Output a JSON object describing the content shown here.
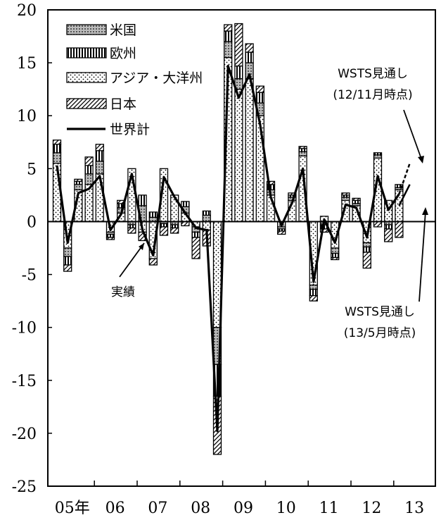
{
  "chart_data": {
    "type": "bar",
    "y_axis": {
      "min": -25,
      "max": 20,
      "step": 5,
      "ticks": [
        "20",
        "15",
        "10",
        "5",
        "0",
        "-5",
        "-10",
        "-15",
        "-20",
        "-25"
      ]
    },
    "x_tick_labels": [
      "05年",
      "06",
      "07",
      "08",
      "09",
      "10",
      "11",
      "12",
      "13"
    ],
    "legend": [
      {
        "key": "us",
        "label": "米国"
      },
      {
        "key": "eu",
        "label": "欧州"
      },
      {
        "key": "ap",
        "label": "アジア・大洋州"
      },
      {
        "key": "jp",
        "label": "日本"
      },
      {
        "key": "world",
        "label": "世界計"
      }
    ],
    "quarters": [
      "05Q1",
      "05Q2",
      "05Q3",
      "05Q4",
      "06Q1",
      "06Q2",
      "06Q3",
      "06Q4",
      "07Q1",
      "07Q2",
      "07Q3",
      "07Q4",
      "08Q1",
      "08Q2",
      "08Q3",
      "08Q4",
      "09Q1",
      "09Q2",
      "09Q3",
      "09Q4",
      "10Q1",
      "10Q2",
      "10Q3",
      "10Q4",
      "11Q1",
      "11Q2",
      "11Q3",
      "11Q4",
      "12Q1",
      "12Q2",
      "12Q3",
      "12Q4",
      "13Q1"
    ],
    "series": [
      {
        "key": "us",
        "name": "米国",
        "values": [
          1.0,
          -0.8,
          0.5,
          1.0,
          1.2,
          -0.2,
          0.5,
          -0.3,
          1.5,
          0.4,
          -0.2,
          -0.3,
          0.6,
          -0.5,
          0.6,
          -3.5,
          1.5,
          1.0,
          1.5,
          1.2,
          0.5,
          -0.2,
          0.3,
          0.4,
          -0.4,
          -0.3,
          -0.5,
          0.3,
          0.2,
          -0.4,
          0.3,
          -0.3,
          0.2
        ]
      },
      {
        "key": "eu",
        "name": "欧州",
        "values": [
          0.8,
          -0.8,
          0.3,
          0.8,
          1.0,
          -0.3,
          0.4,
          -0.3,
          1.0,
          0.5,
          -0.3,
          -0.3,
          0.5,
          -0.5,
          0.4,
          -3.0,
          1.0,
          1.2,
          1.0,
          1.0,
          0.5,
          -0.2,
          0.2,
          0.3,
          -0.6,
          -0.4,
          -0.4,
          0.2,
          0.3,
          -0.5,
          0.2,
          -0.4,
          0.3
        ]
      },
      {
        "key": "ap",
        "name": "アジア・大洋州",
        "values": [
          5.5,
          -2.5,
          3.0,
          3.5,
          4.5,
          -1.0,
          0.8,
          5.0,
          -1.0,
          -3.5,
          5.0,
          2.5,
          0.8,
          -0.5,
          -0.8,
          -10.0,
          15.5,
          12.5,
          13.5,
          10.0,
          2.5,
          -0.5,
          2.0,
          6.2,
          -6.0,
          0.5,
          -2.5,
          2.0,
          1.5,
          -2.0,
          6.0,
          2.0,
          3.0
        ]
      },
      {
        "key": "jp",
        "name": "日本",
        "values": [
          0.4,
          -0.6,
          0.2,
          0.8,
          0.6,
          -0.2,
          0.3,
          -0.5,
          -0.8,
          -0.6,
          -0.8,
          -0.5,
          -0.4,
          -2.0,
          -1.5,
          -5.5,
          0.6,
          4.0,
          0.8,
          0.6,
          0.3,
          -0.3,
          0.2,
          0.2,
          -0.5,
          -0.3,
          -0.2,
          0.2,
          0.2,
          -1.5,
          -0.5,
          -1.2,
          -1.5
        ]
      },
      {
        "key": "world",
        "name": "世界計",
        "values": [
          5.3,
          -2.0,
          2.7,
          3.1,
          4.3,
          -0.8,
          0.7,
          4.5,
          -0.8,
          -3.2,
          4.2,
          2.3,
          0.8,
          -0.6,
          -0.8,
          -19.8,
          14.7,
          11.7,
          13.9,
          9.2,
          2.3,
          -0.4,
          1.8,
          5.0,
          -5.7,
          0.2,
          -2.0,
          1.6,
          1.3,
          -1.5,
          4.3,
          1.1,
          2.6
        ]
      }
    ],
    "forecast_1": [
      {
        "x": "13Q1",
        "y": 2.6
      },
      {
        "x": "13Q2",
        "y": 5.5
      }
    ],
    "forecast_2": [
      {
        "x": "13Q1",
        "y": 1.5
      },
      {
        "x": "13Q2",
        "y": 3.5
      }
    ],
    "annotations": {
      "actual": "実績",
      "forecast_1": [
        "WSTS見通し",
        "(12/11月時点)"
      ],
      "forecast_2": [
        "WSTS見通し",
        "(13/5月時点)"
      ]
    }
  }
}
